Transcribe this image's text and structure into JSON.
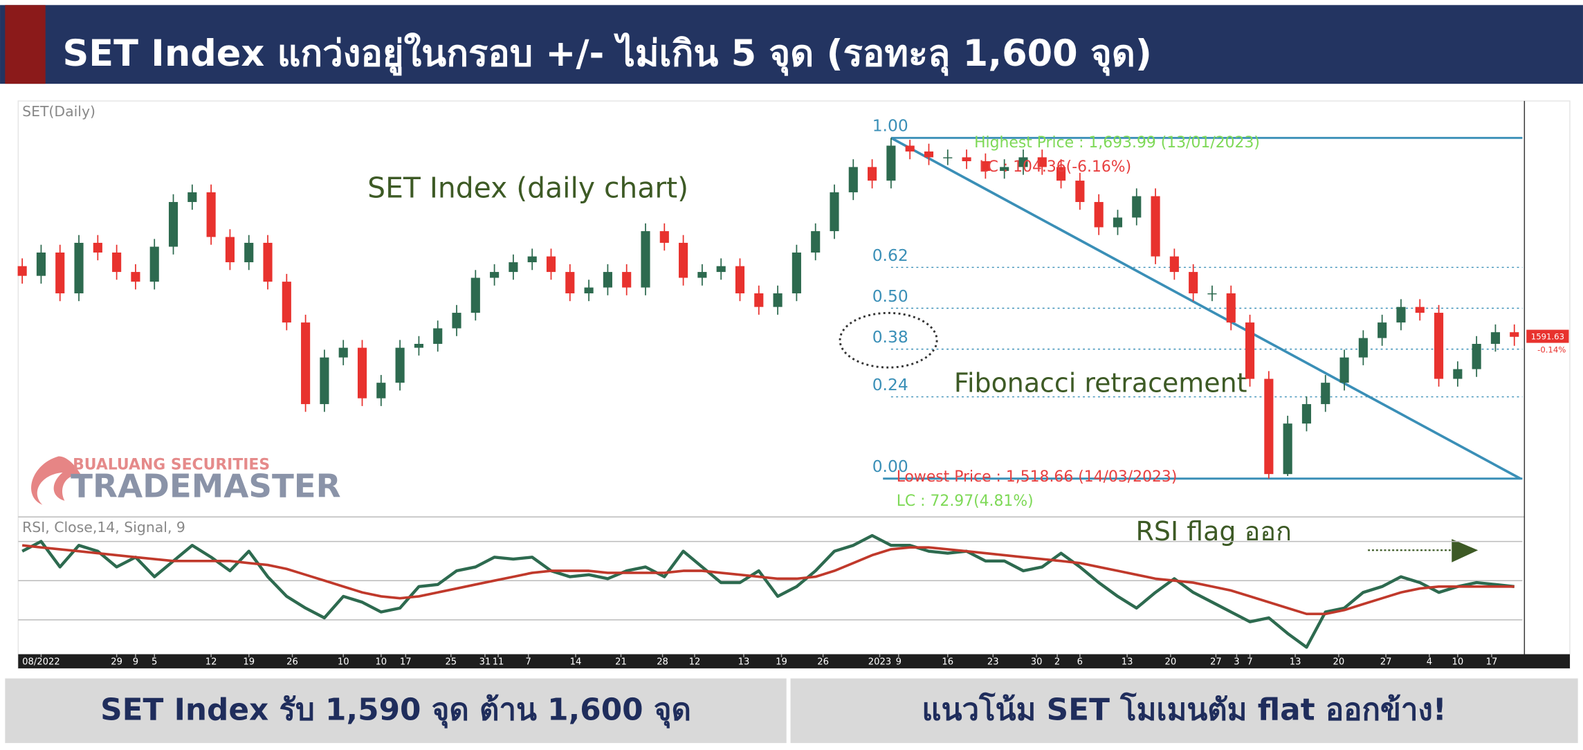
{
  "header_title": "SET Index แกว่งอยู่ในกรอบ +/- ไม่เกิน 5 จุด (รอทะลุ 1,600 จุด)",
  "footer": [
    "SET Index รับ 1,590 จุด ต้าน 1,600 จุด",
    "แนวโน้ม SET โมเมนตัม flat ออกข้าง!"
  ],
  "watermark": [
    "BUALUANG SECURITIES",
    "TRADEMASTER"
  ],
  "chart_data": [
    {
      "type": "candlestick",
      "title": "SET(Daily)",
      "annotations": [
        "SET Index (daily chart)",
        "Fibonacci retracement",
        "Highest Price : 1,693.99 (13/01/2023)",
        "LC : 104.36(-6.16%)",
        "Lowest Price : 1,518.66 (14/03/2023)",
        "LC : 72.97(4.81%)"
      ],
      "last_change_label": "-0.14%",
      "colors": {
        "up": "#2d6a4f",
        "down": "#e8322e"
      },
      "ylim": [
        1500,
        1713
      ],
      "xlim": [
        0,
        79
      ],
      "open": [
        1628,
        1623,
        1635,
        1614,
        1640,
        1635,
        1625,
        1620,
        1638,
        1661,
        1666,
        1643,
        1630,
        1640,
        1620,
        1599,
        1557,
        1581,
        1586,
        1560,
        1568,
        1586,
        1588,
        1596,
        1604,
        1622,
        1625,
        1630,
        1633,
        1625,
        1614,
        1617,
        1625,
        1617,
        1646,
        1640,
        1622,
        1625,
        1628,
        1614,
        1607,
        1614,
        1635,
        1646,
        1666,
        1679,
        1672,
        1690,
        1687,
        1684,
        1684,
        1682,
        1677,
        1679,
        1684,
        1679,
        1672,
        1661,
        1648,
        1653,
        1664,
        1633,
        1625,
        1614,
        1614,
        1599,
        1570,
        1521,
        1547,
        1557,
        1568,
        1581,
        1591,
        1599,
        1607,
        1604,
        1570,
        1575,
        1588,
        1594
      ],
      "high": [
        1632,
        1639,
        1639,
        1644,
        1644,
        1639,
        1629,
        1642,
        1665,
        1670,
        1670,
        1647,
        1644,
        1644,
        1624,
        1603,
        1585,
        1590,
        1590,
        1572,
        1590,
        1592,
        1600,
        1608,
        1626,
        1629,
        1634,
        1637,
        1637,
        1629,
        1621,
        1629,
        1629,
        1650,
        1650,
        1644,
        1629,
        1632,
        1632,
        1618,
        1618,
        1639,
        1650,
        1670,
        1683,
        1683,
        1693.99,
        1693,
        1691,
        1688,
        1688,
        1686,
        1683,
        1688,
        1688,
        1683,
        1676,
        1665,
        1657,
        1668,
        1668,
        1637,
        1629,
        1618,
        1618,
        1603,
        1574,
        1551,
        1561,
        1572,
        1585,
        1595,
        1603,
        1611,
        1611,
        1608,
        1579,
        1592,
        1598,
        1598
      ],
      "low": [
        1619,
        1619,
        1610,
        1610,
        1631,
        1621,
        1616,
        1616,
        1634,
        1657,
        1639,
        1626,
        1626,
        1616,
        1595,
        1553,
        1553,
        1577,
        1556,
        1556,
        1564,
        1582,
        1584,
        1592,
        1600,
        1618,
        1621,
        1626,
        1621,
        1610,
        1610,
        1613,
        1613,
        1613,
        1636,
        1618,
        1618,
        1621,
        1610,
        1603,
        1603,
        1610,
        1631,
        1642,
        1662,
        1668,
        1668,
        1683,
        1680,
        1680,
        1678,
        1673,
        1673,
        1675,
        1675,
        1668,
        1657,
        1644,
        1644,
        1649,
        1629,
        1621,
        1610,
        1610,
        1595,
        1566,
        1518.66,
        1520,
        1543,
        1553,
        1564,
        1577,
        1587,
        1595,
        1600,
        1566,
        1566,
        1571,
        1584,
        1587
      ],
      "close": [
        1623,
        1635,
        1614,
        1640,
        1635,
        1625,
        1620,
        1638,
        1661,
        1666,
        1643,
        1630,
        1640,
        1620,
        1599,
        1557,
        1581,
        1586,
        1560,
        1568,
        1586,
        1588,
        1596,
        1604,
        1622,
        1625,
        1630,
        1633,
        1625,
        1614,
        1617,
        1625,
        1617,
        1646,
        1640,
        1622,
        1625,
        1628,
        1614,
        1607,
        1614,
        1635,
        1646,
        1666,
        1679,
        1672,
        1690,
        1687,
        1684,
        1684,
        1682,
        1677,
        1679,
        1684,
        1679,
        1672,
        1661,
        1648,
        1653,
        1664,
        1633,
        1625,
        1614,
        1614,
        1599,
        1570,
        1521,
        1547,
        1557,
        1568,
        1581,
        1591,
        1599,
        1607,
        1604,
        1570,
        1575,
        1588,
        1594,
        1591.63
      ],
      "fib": {
        "high": 1693.99,
        "low": 1518.66,
        "color": "#3a8fb7",
        "levels": [
          {
            "value": 1,
            "label": "1.00"
          },
          {
            "value": 0.62,
            "label": "0.62"
          },
          {
            "value": 0.5,
            "label": "0.50"
          },
          {
            "value": 0.38,
            "label": "0.38"
          },
          {
            "value": 0.24,
            "label": "0.24"
          },
          {
            "value": 0,
            "label": "0.00"
          }
        ]
      },
      "xticks": [
        {
          "value": 1,
          "label": "08/2022"
        },
        {
          "value": 5,
          "label": "29"
        },
        {
          "value": 6,
          "label": "9"
        },
        {
          "value": 7,
          "label": "5"
        },
        {
          "value": 10,
          "label": "12"
        },
        {
          "value": 12,
          "label": "19"
        },
        {
          "value": 14.3,
          "label": "26"
        },
        {
          "value": 17,
          "label": "10"
        },
        {
          "value": 19,
          "label": "10"
        },
        {
          "value": 20.3,
          "label": "17"
        },
        {
          "value": 22.7,
          "label": "25"
        },
        {
          "value": 24.5,
          "label": "31"
        },
        {
          "value": 25.2,
          "label": "11"
        },
        {
          "value": 26.8,
          "label": "7"
        },
        {
          "value": 29.3,
          "label": "14"
        },
        {
          "value": 31.7,
          "label": "21"
        },
        {
          "value": 33.9,
          "label": "28"
        },
        {
          "value": 35.6,
          "label": "12"
        },
        {
          "value": 38.2,
          "label": "13"
        },
        {
          "value": 40.2,
          "label": "19"
        },
        {
          "value": 42.4,
          "label": "26"
        },
        {
          "value": 45.4,
          "label": "2023"
        },
        {
          "value": 46.4,
          "label": "9"
        },
        {
          "value": 49,
          "label": "16"
        },
        {
          "value": 51.4,
          "label": "23"
        },
        {
          "value": 53.7,
          "label": "30"
        },
        {
          "value": 54.8,
          "label": "2"
        },
        {
          "value": 56,
          "label": "6"
        },
        {
          "value": 58.5,
          "label": "13"
        },
        {
          "value": 60.8,
          "label": "20"
        },
        {
          "value": 63.2,
          "label": "27"
        },
        {
          "value": 64.3,
          "label": "3"
        },
        {
          "value": 65,
          "label": "7"
        },
        {
          "value": 67.4,
          "label": "13"
        },
        {
          "value": 69.7,
          "label": "20"
        },
        {
          "value": 72.2,
          "label": "27"
        },
        {
          "value": 74.5,
          "label": "4"
        },
        {
          "value": 76,
          "label": "10"
        },
        {
          "value": 77.8,
          "label": "17"
        }
      ]
    },
    {
      "type": "line",
      "title": "RSI, Close,14, Signal, 9",
      "annotations": [
        "RSI flag ออก"
      ],
      "ylim": [
        14,
        81
      ],
      "xlim": [
        0,
        79
      ],
      "levels": [
        30,
        50,
        70
      ],
      "series": [
        {
          "color": "#2d6a4f",
          "values": [
            65,
            70,
            57,
            68,
            65,
            57,
            62,
            52,
            60,
            68,
            62,
            55,
            65,
            52,
            42,
            36,
            31,
            42,
            39,
            34,
            36,
            47,
            48,
            55,
            57,
            62,
            61,
            62,
            55,
            52,
            53,
            51,
            55,
            57,
            52,
            65,
            57,
            49,
            49,
            55,
            42,
            47,
            55,
            65,
            68,
            73,
            68,
            68,
            65,
            64,
            65,
            60,
            60,
            55,
            57,
            64,
            57,
            49,
            42,
            36,
            44,
            51,
            44,
            39,
            34,
            29,
            31,
            23,
            16,
            34,
            36,
            44,
            47,
            52,
            49,
            44,
            47,
            49,
            48,
            47
          ]
        },
        {
          "color": "#c0392b",
          "values": [
            68,
            67,
            66,
            65,
            64,
            63,
            62,
            61,
            60,
            60,
            60,
            60,
            59,
            58,
            56,
            53,
            50,
            47,
            44,
            42,
            41,
            42,
            44,
            46,
            48,
            50,
            52,
            54,
            55,
            55,
            55,
            54,
            54,
            54,
            54,
            55,
            55,
            54,
            53,
            52,
            51,
            51,
            52,
            55,
            59,
            63,
            66,
            67,
            67,
            66,
            65,
            64,
            63,
            62,
            61,
            60,
            59,
            57,
            55,
            53,
            51,
            50,
            49,
            47,
            45,
            42,
            39,
            36,
            33,
            33,
            35,
            38,
            41,
            44,
            46,
            47,
            47,
            47,
            47,
            47
          ]
        }
      ]
    }
  ]
}
